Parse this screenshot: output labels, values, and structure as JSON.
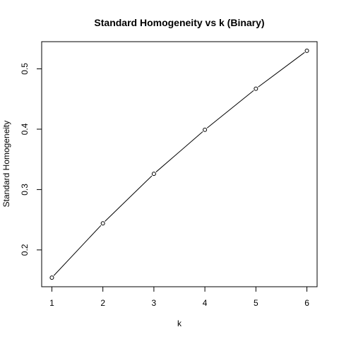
{
  "chart_data": {
    "type": "line",
    "title": "Standard Homogeneity vs k (Binary)",
    "xlabel": "k",
    "ylabel": "Standard Homogeneity",
    "x": [
      1,
      2,
      3,
      4,
      5,
      6
    ],
    "y": [
      0.154,
      0.244,
      0.326,
      0.399,
      0.467,
      0.53
    ],
    "xticks": [
      1,
      2,
      3,
      4,
      5,
      6
    ],
    "yticks": [
      0.2,
      0.3,
      0.4,
      0.5
    ],
    "xlim": [
      0.8,
      6.2
    ],
    "ylim": [
      0.139,
      0.545
    ],
    "marker": "open-circle",
    "line_color": "#000000",
    "grid": false
  }
}
